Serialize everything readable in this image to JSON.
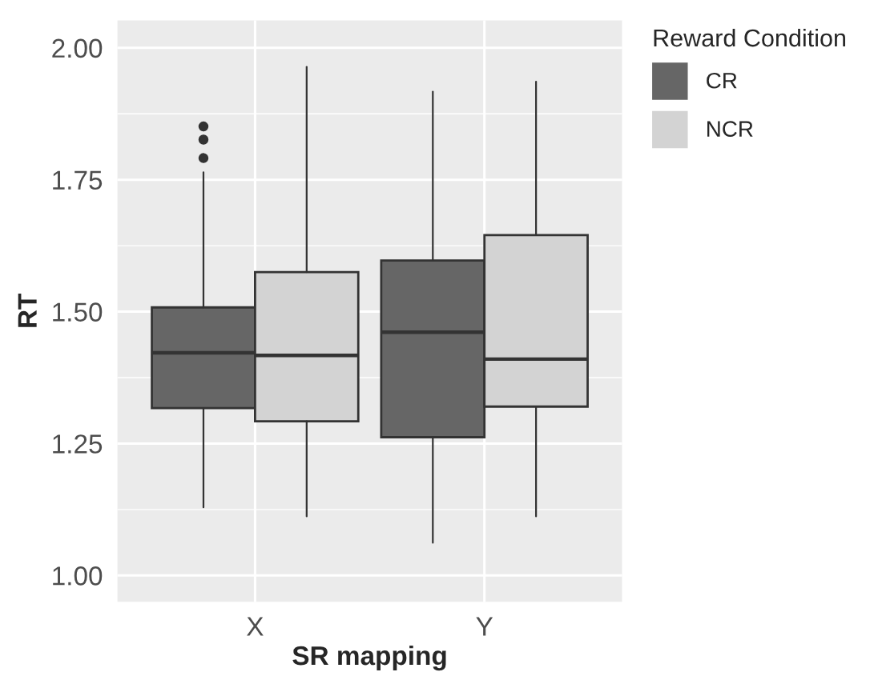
{
  "chart_data": {
    "type": "box",
    "categories": [
      "X",
      "Y"
    ],
    "xlabel": "SR mapping",
    "ylabel": "RT",
    "legend_title": "Reward Condition",
    "ylim": [
      0.95,
      2.052
    ],
    "yticks": [
      {
        "value": 1.0,
        "label": "1.00"
      },
      {
        "value": 1.25,
        "label": "1.25"
      },
      {
        "value": 1.5,
        "label": "1.50"
      },
      {
        "value": 1.75,
        "label": "1.75"
      },
      {
        "value": 2.0,
        "label": "2.00"
      }
    ],
    "grid": true,
    "legend": "right",
    "series": [
      {
        "name": "CR",
        "color": "#666666",
        "boxes": [
          {
            "low": 1.129,
            "q1": 1.317,
            "median": 1.422,
            "q3": 1.508,
            "high": 1.764,
            "outliers": [
              1.791,
              1.826,
              1.851
            ]
          },
          {
            "low": 1.062,
            "q1": 1.262,
            "median": 1.461,
            "q3": 1.597,
            "high": 1.917
          }
        ]
      },
      {
        "name": "NCR",
        "color": "#d3d3d3",
        "boxes": [
          {
            "low": 1.112,
            "q1": 1.292,
            "median": 1.417,
            "q3": 1.575,
            "high": 1.964
          },
          {
            "low": 1.112,
            "q1": 1.32,
            "median": 1.41,
            "q3": 1.645,
            "high": 1.936
          }
        ]
      }
    ]
  }
}
